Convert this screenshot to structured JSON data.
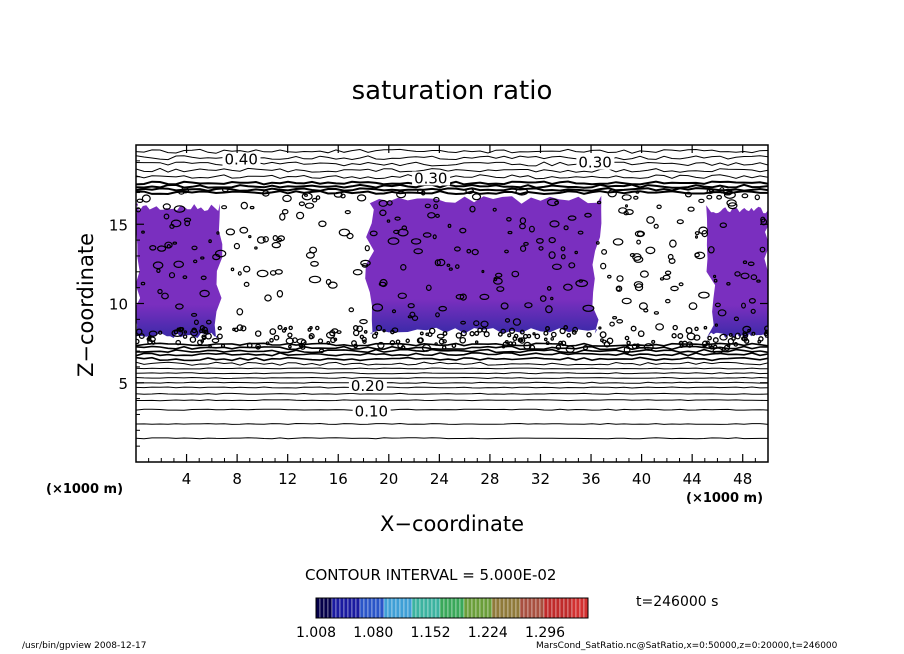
{
  "chart_data": {
    "type": "contour",
    "title": "saturation ratio",
    "xlabel": "X−coordinate",
    "ylabel": "Z−coordinate",
    "x_unit_label": "(×1000 m)",
    "x_unit_label_right": "(×1000 m)",
    "xlim": [
      0,
      50
    ],
    "ylim": [
      0,
      20
    ],
    "xticks": [
      4,
      8,
      12,
      16,
      20,
      24,
      28,
      32,
      36,
      40,
      44,
      48
    ],
    "yticks": [
      5,
      10,
      15
    ],
    "contour_labels": [
      {
        "text": "0.40",
        "x": 7.0,
        "z": 18.9
      },
      {
        "text": "0.30",
        "x": 35.0,
        "z": 18.7
      },
      {
        "text": "0.30",
        "x": 22.0,
        "z": 17.7
      },
      {
        "text": "0.20",
        "x": 17.0,
        "z": 4.6
      },
      {
        "text": "0.10",
        "x": 17.3,
        "z": 3.0
      }
    ],
    "contour_interval": "CONTOUR INTERVAL = 5.000E-02",
    "colorbar": {
      "ticks": [
        "1.008",
        "1.080",
        "1.152",
        "1.224",
        "1.296"
      ],
      "min": 1.008,
      "max": 1.35
    },
    "shaded_regions": [
      {
        "x": [
          0,
          6.5
        ],
        "z": [
          7.8,
          16.3
        ]
      },
      {
        "x": [
          18.5,
          36.5
        ],
        "z": [
          8.1,
          16.8
        ]
      },
      {
        "x": [
          45.5,
          50
        ],
        "z": [
          7.8,
          16.2
        ]
      }
    ],
    "cloud_layer_z": [
      7.0,
      17.2
    ],
    "time": "t=246000 s"
  },
  "footer": {
    "left": "/usr/bin/gpview   2008-12-17",
    "right": "MarsCond_SatRatio.nc@SatRatio,x=0:50000,z=0:20000,t=246000"
  },
  "colors": {
    "shade_main": "#7a2fbf",
    "shade_dark": "#3a2aa8",
    "line": "#000000"
  }
}
